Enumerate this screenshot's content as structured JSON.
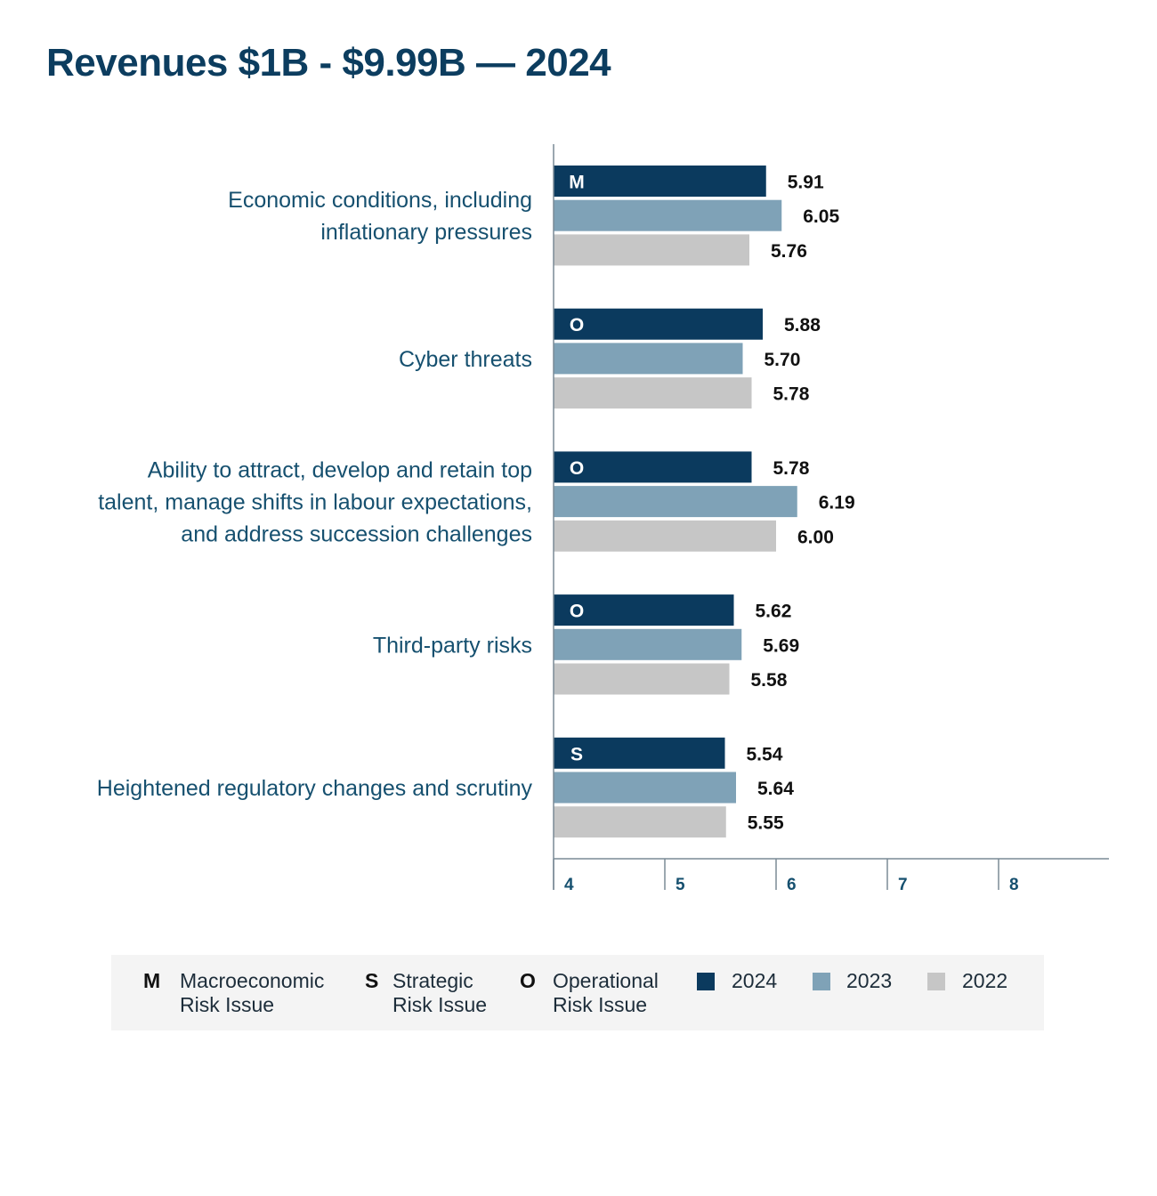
{
  "title": "Revenues $1B - $9.99B — 2024",
  "colors": {
    "y2024": "#0b3a5e",
    "y2023": "#7fa2b7",
    "y2022": "#c6c6c6",
    "axis": "#7a8a96"
  },
  "chart_data": {
    "type": "bar",
    "orientation": "horizontal",
    "title": "Revenues $1B - $9.99B — 2024",
    "xlim": [
      4,
      9
    ],
    "xticks": [
      4,
      5,
      6,
      7,
      8
    ],
    "categories": [
      {
        "lines": [
          "Economic conditions, including",
          "inflationary pressures"
        ],
        "code": "M"
      },
      {
        "lines": [
          "Cyber threats"
        ],
        "code": "O"
      },
      {
        "lines": [
          "Ability to attract, develop and retain top",
          "talent, manage shifts in labour expectations,",
          "and address succession challenges"
        ],
        "code": "O"
      },
      {
        "lines": [
          "Third-party risks"
        ],
        "code": "O"
      },
      {
        "lines": [
          "Heightened regulatory changes and scrutiny"
        ],
        "code": "S"
      }
    ],
    "series": [
      {
        "name": "2024",
        "values": [
          "5.91",
          "5.88",
          "5.78",
          "5.62",
          "5.54"
        ]
      },
      {
        "name": "2023",
        "values": [
          "6.05",
          "5.70",
          "6.19",
          "5.69",
          "5.64"
        ]
      },
      {
        "name": "2022",
        "values": [
          "5.76",
          "5.78",
          "6.00",
          "5.58",
          "5.55"
        ]
      }
    ]
  },
  "legend": {
    "codes": [
      {
        "code": "M",
        "text": [
          "Macroeconomic",
          "Risk Issue"
        ]
      },
      {
        "code": "S",
        "text": [
          "Strategic",
          "Risk Issue"
        ]
      },
      {
        "code": "O",
        "text": [
          "Operational",
          "Risk Issue"
        ]
      }
    ],
    "years": [
      "2024",
      "2023",
      "2022"
    ]
  }
}
